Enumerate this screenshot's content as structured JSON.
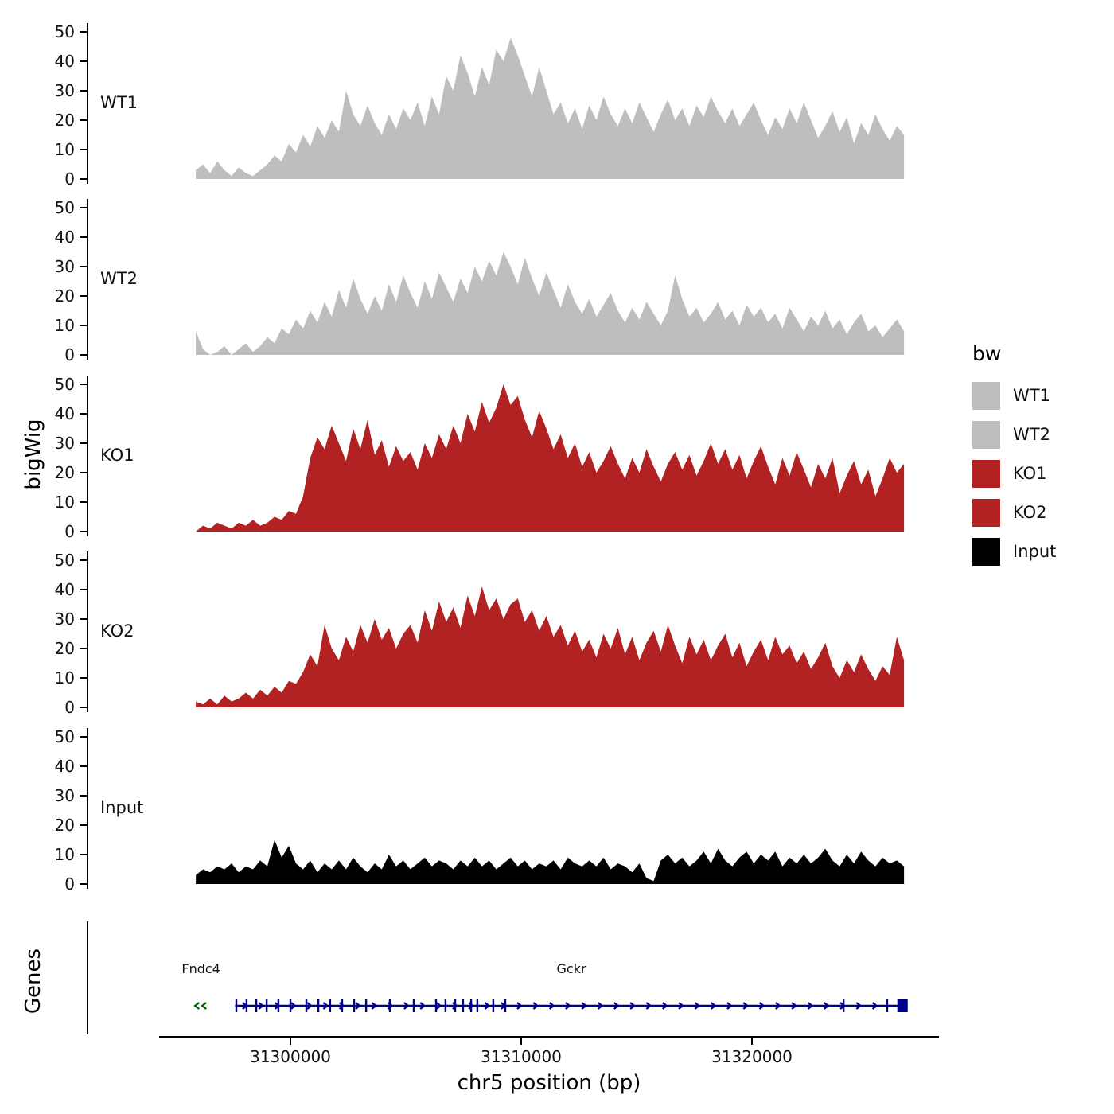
{
  "labels": {
    "y_axis": "bigWig",
    "genes_axis": "Genes",
    "x_axis": "chr5 position (bp)"
  },
  "legend": {
    "title": "bw",
    "items": [
      {
        "label": "WT1",
        "color": "#bebebe"
      },
      {
        "label": "WT2",
        "color": "#bebebe"
      },
      {
        "label": "KO1",
        "color": "#b22222"
      },
      {
        "label": "KO2",
        "color": "#b22222"
      },
      {
        "label": "Input",
        "color": "#000000"
      }
    ]
  },
  "chart_data": {
    "type": "area",
    "title": "",
    "xlabel": "chr5 position (bp)",
    "ylabel": "bigWig",
    "x_start_bp": 31295900,
    "x_step_bp": 310,
    "x_ticks": [
      31300000,
      31310000,
      31320000
    ],
    "x_tick_labels": [
      "31300000",
      "31310000",
      "31320000"
    ],
    "xlim": [
      31294400,
      31328600
    ],
    "y_ticks": [
      0,
      10,
      20,
      30,
      40,
      50
    ],
    "ylim": [
      0,
      52
    ],
    "legend_position": "right",
    "grid": false,
    "series": [
      {
        "name": "WT1",
        "color": "#bebebe",
        "values": [
          3,
          5,
          2,
          6,
          3,
          1,
          4,
          2,
          1,
          3,
          5,
          8,
          6,
          12,
          9,
          15,
          11,
          18,
          14,
          20,
          16,
          30,
          22,
          18,
          25,
          19,
          15,
          22,
          17,
          24,
          20,
          26,
          18,
          28,
          22,
          35,
          30,
          42,
          36,
          28,
          38,
          32,
          44,
          40,
          48,
          42,
          35,
          28,
          38,
          30,
          22,
          26,
          19,
          24,
          17,
          25,
          20,
          28,
          22,
          18,
          24,
          19,
          26,
          21,
          16,
          22,
          27,
          20,
          24,
          18,
          25,
          21,
          28,
          23,
          19,
          24,
          18,
          22,
          26,
          20,
          15,
          21,
          17,
          24,
          19,
          26,
          20,
          14,
          18,
          23,
          16,
          21,
          12,
          19,
          15,
          22,
          17,
          13,
          18,
          15
        ]
      },
      {
        "name": "WT2",
        "color": "#bebebe",
        "values": [
          8,
          2,
          0,
          1,
          3,
          0,
          2,
          4,
          1,
          3,
          6,
          4,
          9,
          7,
          12,
          9,
          15,
          11,
          18,
          13,
          22,
          16,
          26,
          19,
          14,
          20,
          15,
          24,
          18,
          27,
          21,
          16,
          25,
          19,
          28,
          23,
          18,
          26,
          21,
          30,
          25,
          32,
          27,
          35,
          30,
          24,
          33,
          26,
          20,
          28,
          22,
          16,
          24,
          18,
          14,
          19,
          13,
          17,
          21,
          15,
          11,
          16,
          12,
          18,
          14,
          10,
          15,
          27,
          19,
          13,
          16,
          11,
          14,
          18,
          12,
          15,
          10,
          17,
          13,
          16,
          11,
          14,
          9,
          16,
          12,
          8,
          13,
          10,
          15,
          9,
          12,
          7,
          11,
          14,
          8,
          10,
          6,
          9,
          12,
          8
        ]
      },
      {
        "name": "KO1",
        "color": "#b22222",
        "values": [
          0,
          2,
          1,
          3,
          2,
          1,
          3,
          2,
          4,
          2,
          3,
          5,
          4,
          7,
          6,
          12,
          25,
          32,
          28,
          36,
          30,
          24,
          35,
          28,
          38,
          26,
          31,
          22,
          29,
          24,
          27,
          21,
          30,
          25,
          33,
          28,
          36,
          30,
          40,
          34,
          44,
          37,
          42,
          50,
          43,
          46,
          38,
          32,
          41,
          35,
          28,
          33,
          25,
          30,
          22,
          27,
          20,
          24,
          29,
          23,
          18,
          25,
          20,
          28,
          22,
          17,
          23,
          27,
          21,
          26,
          19,
          24,
          30,
          23,
          28,
          21,
          26,
          18,
          24,
          29,
          22,
          16,
          25,
          19,
          27,
          21,
          15,
          23,
          18,
          25,
          13,
          19,
          24,
          16,
          21,
          12,
          18,
          25,
          20,
          23
        ]
      },
      {
        "name": "KO2",
        "color": "#b22222",
        "values": [
          2,
          1,
          3,
          1,
          4,
          2,
          3,
          5,
          3,
          6,
          4,
          7,
          5,
          9,
          8,
          12,
          18,
          14,
          28,
          20,
          16,
          24,
          19,
          28,
          22,
          30,
          23,
          27,
          20,
          25,
          28,
          22,
          33,
          26,
          36,
          29,
          34,
          27,
          38,
          31,
          41,
          33,
          37,
          30,
          35,
          37,
          29,
          33,
          26,
          31,
          24,
          28,
          21,
          26,
          19,
          23,
          17,
          25,
          20,
          27,
          18,
          24,
          16,
          22,
          26,
          19,
          28,
          21,
          15,
          24,
          18,
          23,
          16,
          21,
          25,
          17,
          22,
          14,
          19,
          23,
          16,
          24,
          18,
          21,
          15,
          19,
          13,
          17,
          22,
          14,
          10,
          16,
          12,
          18,
          13,
          9,
          14,
          11,
          24,
          16
        ]
      },
      {
        "name": "Input",
        "color": "#000000",
        "values": [
          3,
          5,
          4,
          6,
          5,
          7,
          4,
          6,
          5,
          8,
          6,
          15,
          9,
          13,
          7,
          5,
          8,
          4,
          7,
          5,
          8,
          5,
          9,
          6,
          4,
          7,
          5,
          10,
          6,
          8,
          5,
          7,
          9,
          6,
          8,
          7,
          5,
          8,
          6,
          9,
          6,
          8,
          5,
          7,
          9,
          6,
          8,
          5,
          7,
          6,
          8,
          5,
          9,
          7,
          6,
          8,
          6,
          9,
          5,
          7,
          6,
          4,
          7,
          2,
          1,
          8,
          10,
          7,
          9,
          6,
          8,
          11,
          7,
          12,
          8,
          6,
          9,
          11,
          7,
          10,
          8,
          11,
          6,
          9,
          7,
          10,
          7,
          9,
          12,
          8,
          6,
          10,
          7,
          11,
          8,
          6,
          9,
          7,
          8,
          6
        ]
      }
    ],
    "genes": {
      "panel_label": "Genes",
      "items": [
        {
          "name": "Fndc4",
          "strand": "-",
          "color": "#006400",
          "start_bp": 31295800,
          "end_bp": 31296450,
          "style": "arrows_only"
        },
        {
          "name": "Gckr",
          "strand": "+",
          "color": "#00008b",
          "start_bp": 31297600,
          "end_bp": 31326750,
          "exon_ticks_bp": [
            31297655,
            31298100,
            31298520,
            31298970,
            31299480,
            31300000,
            31300690,
            31301210,
            31301720,
            31302240,
            31302760,
            31303280,
            31304310,
            31305345,
            31306310,
            31306720,
            31307140,
            31307480,
            31307830,
            31308100,
            31308790,
            31309310,
            31323970,
            31325860
          ],
          "end_box_bp": [
            31326300,
            31326750
          ]
        }
      ]
    }
  }
}
